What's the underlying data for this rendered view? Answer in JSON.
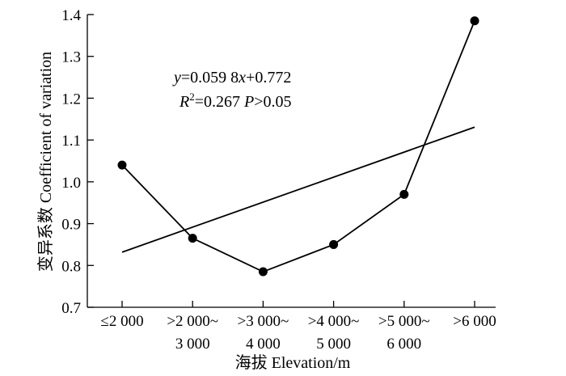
{
  "chart_data": {
    "type": "line",
    "title": "",
    "xlabel": "海拔 Elevation/m",
    "ylabel": "变异系数 Coefficient of variation",
    "categories": [
      [
        "≤2 000"
      ],
      [
        ">2 000~",
        "3 000"
      ],
      [
        ">3 000~",
        "4 000"
      ],
      [
        ">4 000~",
        "5 000"
      ],
      [
        ">5 000~",
        "6 000"
      ],
      [
        ">6 000"
      ]
    ],
    "series": [
      {
        "values": [
          1.04,
          0.865,
          0.785,
          0.85,
          0.97,
          1.385
        ]
      }
    ],
    "trendline": {
      "slope": 0.0598,
      "intercept": 0.772
    },
    "ylim": [
      0.7,
      1.4
    ],
    "yticks": [
      "0.7",
      "0.8",
      "0.9",
      "1.0",
      "1.1",
      "1.2",
      "1.3",
      "1.4"
    ],
    "annotation": {
      "line1": {
        "y": "y",
        "eq": "=0.059 8",
        "x": "x",
        "rest": "+0.772"
      },
      "line2": {
        "r": "R",
        "sup": "2",
        "eq": "=0.267 ",
        "p": "P",
        "rest": ">0.05"
      }
    },
    "grid": false,
    "legend": "none"
  }
}
